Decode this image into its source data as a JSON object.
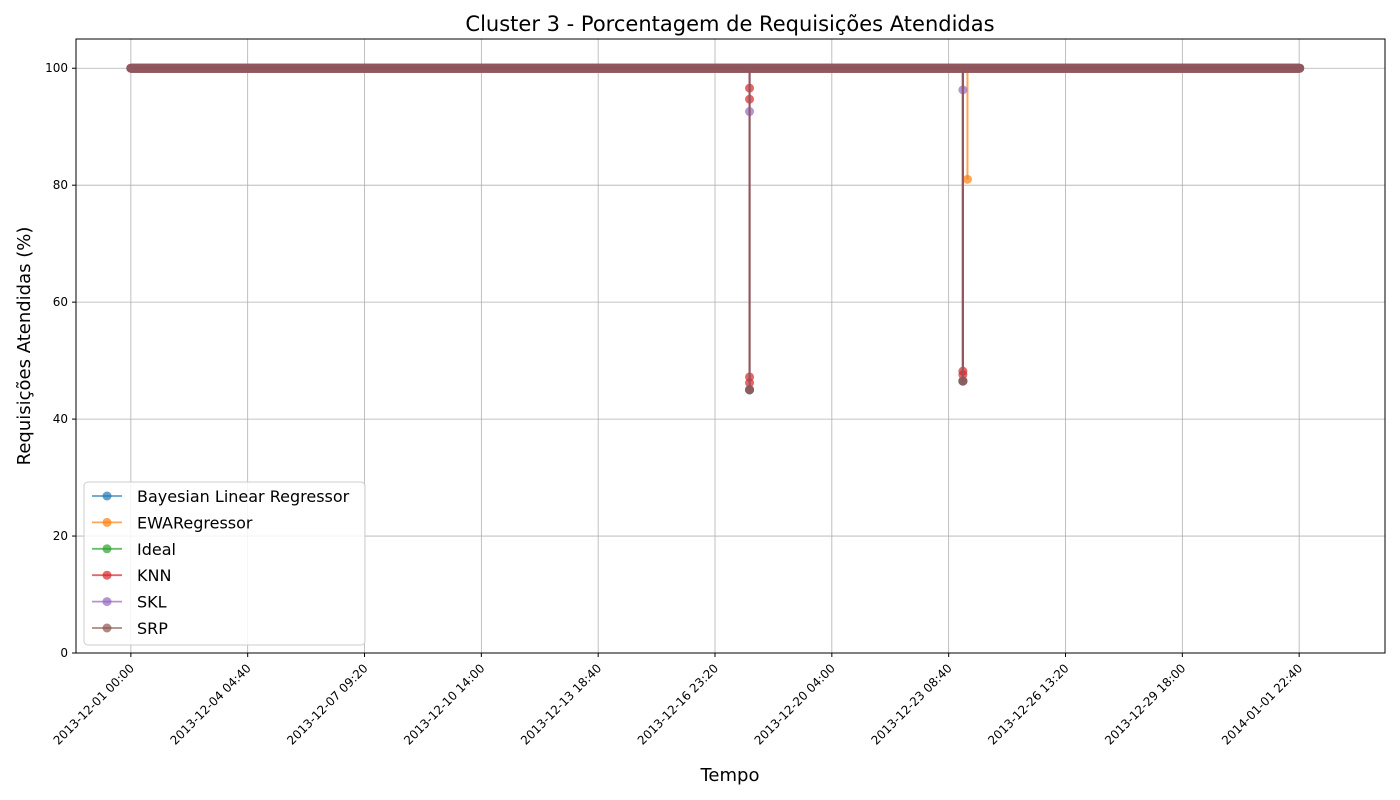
{
  "chart_data": {
    "type": "line",
    "title": "Cluster 3 - Porcentagem de Requisições Atendidas",
    "xlabel": "Tempo",
    "ylabel": "Requisições Atendidas (%)",
    "x_range": [
      "2013-11-29 12:00",
      "2014-01-04 07:00"
    ],
    "ylim": [
      0,
      105
    ],
    "y_ticks": [
      0,
      20,
      40,
      60,
      80,
      100
    ],
    "x_ticks": [
      "2013-12-01 00:00",
      "2013-12-04 04:40",
      "2013-12-07 09:20",
      "2013-12-10 14:00",
      "2013-12-13 18:40",
      "2013-12-16 23:20",
      "2013-12-20 04:00",
      "2013-12-23 08:40",
      "2013-12-26 13:20",
      "2013-12-29 18:00",
      "2014-01-01 22:40"
    ],
    "grid": true,
    "legend_position": "lower-left",
    "x_start": "2013-12-01 00:00",
    "x_end": "2014-01-01 23:00",
    "baseline": 100,
    "series": [
      {
        "name": "Bayesian Linear Regressor",
        "color": "#1f77b4",
        "dips": [
          {
            "t": "2013-12-17 22:00",
            "value": 45
          },
          {
            "t": "2013-12-23 18:00",
            "value": 46.5
          }
        ]
      },
      {
        "name": "EWARegressor",
        "color": "#ff7f0e",
        "dips": [
          {
            "t": "2013-12-17 22:00",
            "value": 45
          },
          {
            "t": "2013-12-23 18:00",
            "value": 46.5
          },
          {
            "t": "2013-12-23 21:00",
            "value": 81
          }
        ]
      },
      {
        "name": "Ideal",
        "color": "#2ca02c",
        "dips": [
          {
            "t": "2013-12-17 22:00",
            "value": 45
          },
          {
            "t": "2013-12-23 18:00",
            "value": 46.5
          }
        ]
      },
      {
        "name": "KNN",
        "color": "#d62728",
        "dips": [
          {
            "t": "2013-12-17 22:00",
            "value": 47.2
          },
          {
            "t": "2013-12-17 22:00",
            "value": 46.2
          },
          {
            "t": "2013-12-17 22:00",
            "value": 94.7
          },
          {
            "t": "2013-12-17 22:00",
            "value": 96.6
          },
          {
            "t": "2013-12-23 18:00",
            "value": 48.2
          },
          {
            "t": "2013-12-23 18:00",
            "value": 47.6
          }
        ]
      },
      {
        "name": "SKL",
        "color": "#9467bd",
        "dips": [
          {
            "t": "2013-12-17 22:00",
            "value": 92.6
          },
          {
            "t": "2013-12-17 22:00",
            "value": 45
          },
          {
            "t": "2013-12-23 18:00",
            "value": 96.3
          },
          {
            "t": "2013-12-23 18:00",
            "value": 46.5
          }
        ]
      },
      {
        "name": "SRP",
        "color": "#8c564b",
        "dips": [
          {
            "t": "2013-12-17 22:00",
            "value": 45
          },
          {
            "t": "2013-12-23 18:00",
            "value": 46.5
          }
        ]
      }
    ]
  }
}
